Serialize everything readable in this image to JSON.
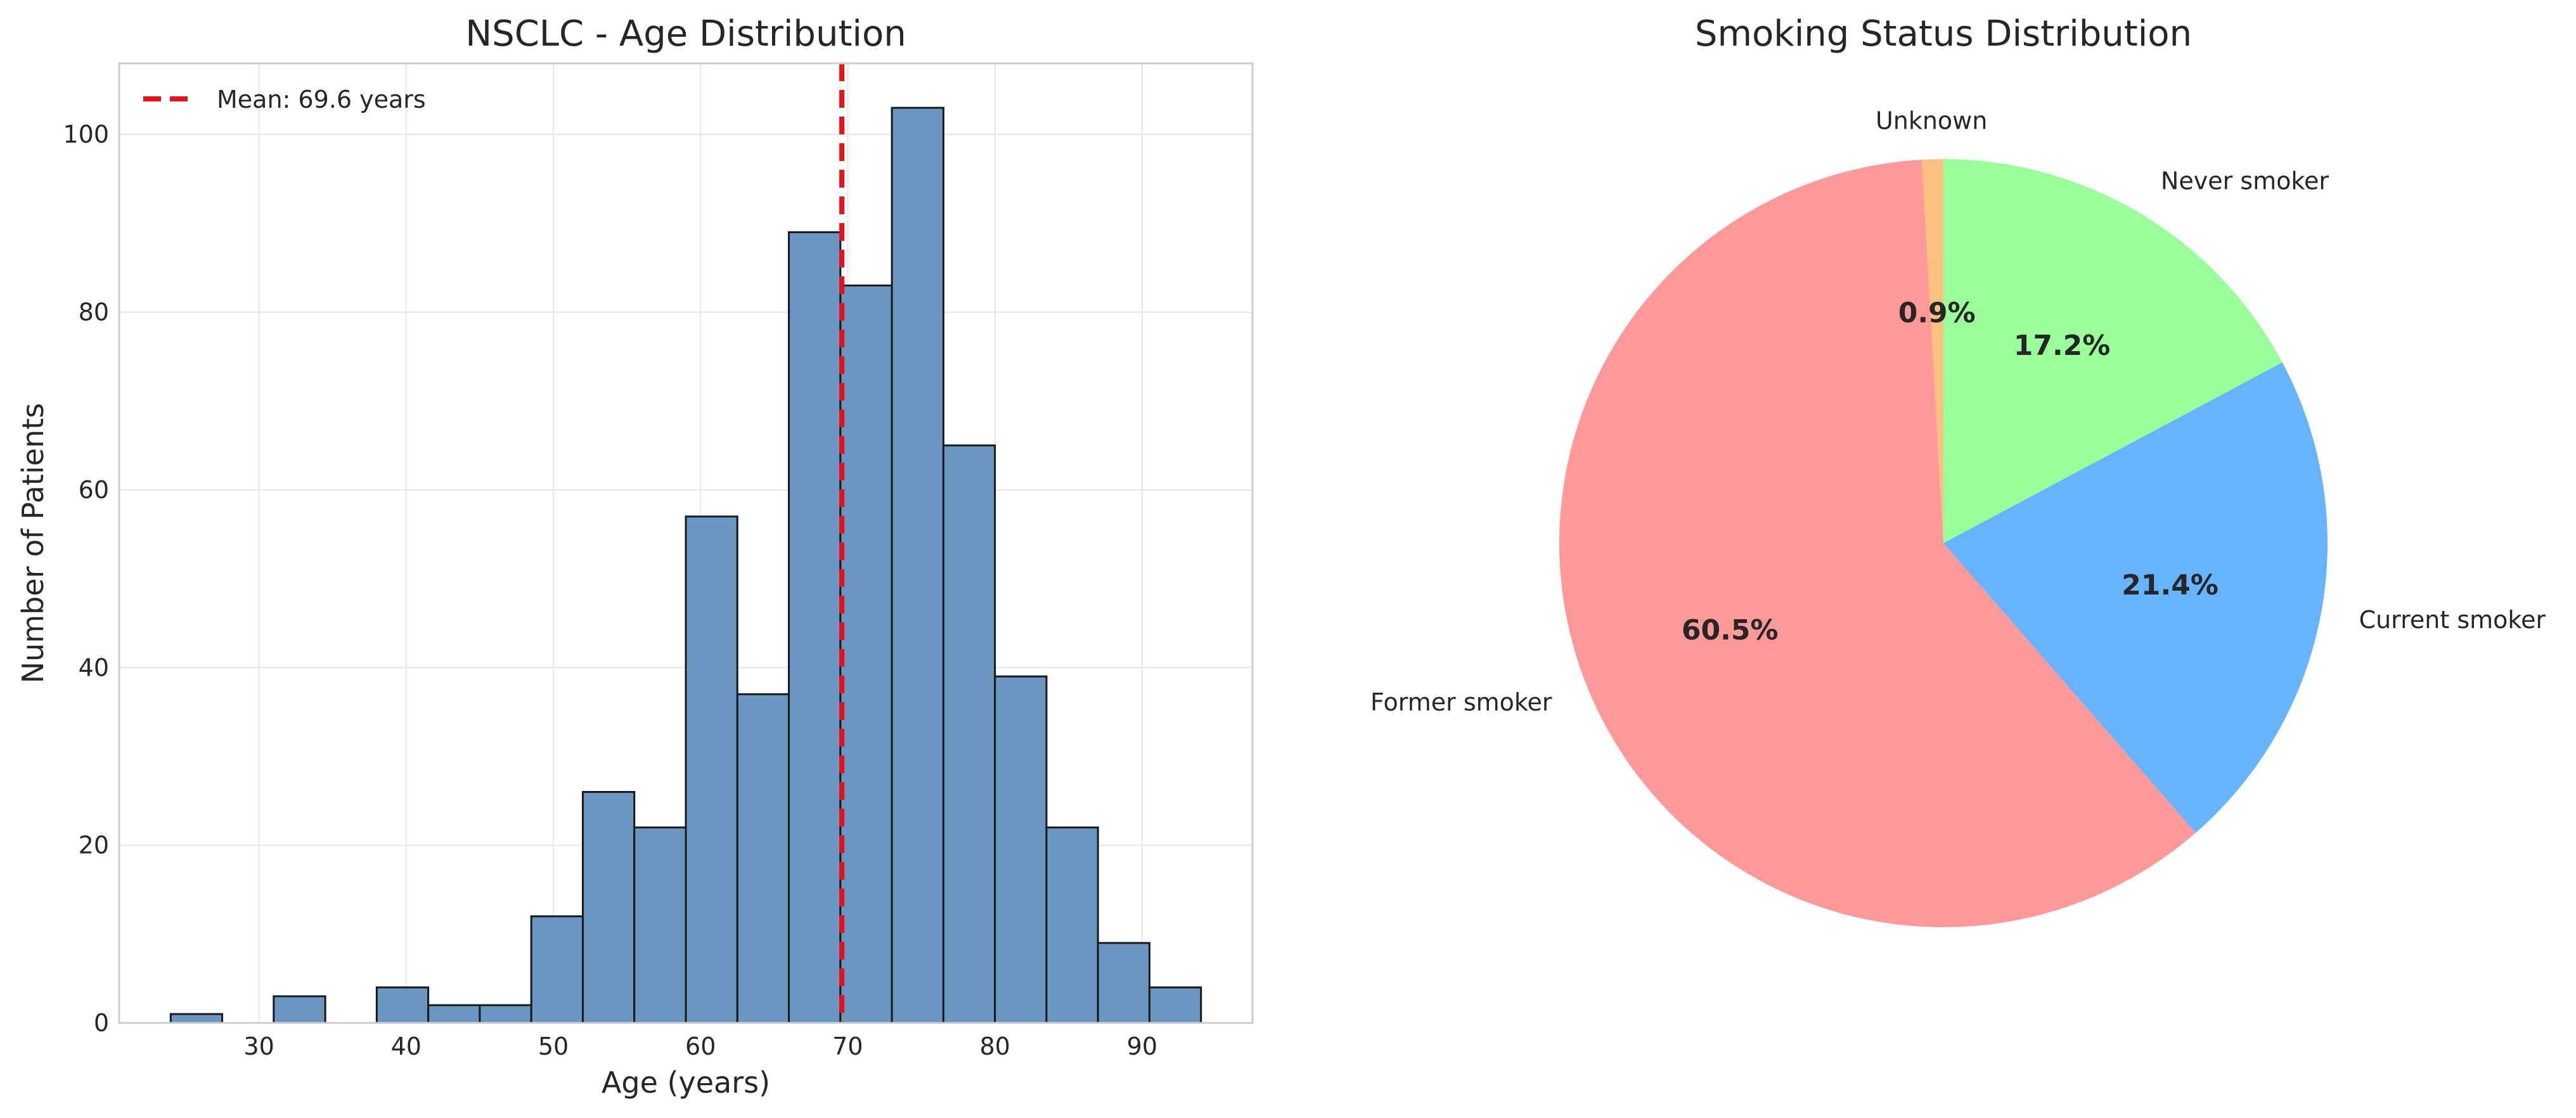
{
  "chart_data": [
    {
      "type": "bar",
      "title": "NSCLC - Age Distribution",
      "xlabel": "Age (years)",
      "ylabel": "Number of Patients",
      "xlim": [
        20.5,
        97.5
      ],
      "ylim": [
        0,
        108
      ],
      "x_ticks": [
        30,
        40,
        50,
        60,
        70,
        80,
        90
      ],
      "y_ticks": [
        0,
        20,
        40,
        60,
        80,
        100
      ],
      "bin_edges": [
        24,
        27.5,
        31,
        34.5,
        38,
        41.5,
        45,
        48.5,
        52,
        55.5,
        59,
        62.5,
        66,
        69.5,
        73,
        76.5,
        80,
        83.5,
        87,
        90.5,
        94
      ],
      "values": [
        1,
        0,
        3,
        0,
        4,
        2,
        2,
        12,
        26,
        22,
        57,
        37,
        89,
        83,
        103,
        65,
        39,
        22,
        9,
        4
      ],
      "mean_line": {
        "x": 69.6,
        "label": "Mean: 69.6 years",
        "color": "#e8111b"
      },
      "legend": "top-left",
      "grid": true,
      "bar_color": "#6a96c2",
      "edge_color": "#1a1a1a"
    },
    {
      "type": "pie",
      "title": "Smoking Status Distribution",
      "start_angle_deg": 90,
      "direction": "counterclockwise",
      "slices": [
        {
          "label": "Unknown",
          "value": 0.9,
          "pct_label": "0.9%",
          "color": "#ffc080"
        },
        {
          "label": "Former smoker",
          "value": 60.5,
          "pct_label": "60.5%",
          "color": "#ff9999"
        },
        {
          "label": "Current smoker",
          "value": 21.4,
          "pct_label": "21.4%",
          "color": "#66b3ff"
        },
        {
          "label": "Never smoker",
          "value": 17.2,
          "pct_label": "17.2%",
          "color": "#99ff99"
        }
      ]
    }
  ]
}
